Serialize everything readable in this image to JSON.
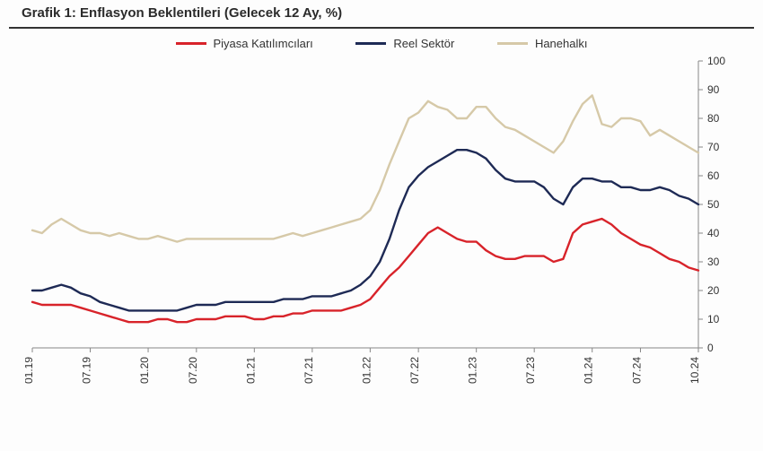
{
  "title": "Grafik 1: Enflasyon Beklentileri (Gelecek 12 Ay, %)",
  "title_fontsize": 15,
  "background_color": "#fdfdfd",
  "chart": {
    "type": "line",
    "x_labels": [
      "01.19",
      "07.19",
      "01.20",
      "07.20",
      "01.21",
      "07.21",
      "01.22",
      "07.22",
      "01.23",
      "07.23",
      "01.24",
      "07.24",
      "10.24"
    ],
    "x_label_fontsize": 12,
    "x_label_rotation": -90,
    "ylim": [
      0,
      100
    ],
    "ytick_step": 10,
    "y_label_fontsize": 12,
    "y_axis_side": "right",
    "plot_border": {
      "bottom": true,
      "right": true,
      "left": false,
      "top": false
    },
    "axis_color": "#888888",
    "line_width": 2.4,
    "legend": {
      "position": "top-center",
      "fontsize": 13,
      "items": [
        {
          "label": "Piyasa Katılımcıları",
          "color": "#d8232a"
        },
        {
          "label": "Reel Sektör",
          "color": "#1e2a55"
        },
        {
          "label": "Hanehalkı",
          "color": "#d6c9a8"
        }
      ]
    },
    "n_points": 70,
    "series": [
      {
        "name": "Hanehalkı",
        "color": "#d6c9a8",
        "values": [
          41,
          40,
          43,
          45,
          43,
          41,
          40,
          40,
          39,
          40,
          39,
          38,
          38,
          39,
          38,
          37,
          38,
          38,
          38,
          38,
          38,
          38,
          38,
          38,
          38,
          38,
          39,
          40,
          39,
          40,
          41,
          42,
          43,
          44,
          45,
          48,
          55,
          64,
          72,
          80,
          82,
          86,
          84,
          83,
          80,
          80,
          84,
          84,
          80,
          77,
          76,
          74,
          72,
          70,
          68,
          72,
          79,
          85,
          88,
          78,
          77,
          80,
          80,
          79,
          74,
          76,
          74,
          72,
          70,
          68
        ]
      },
      {
        "name": "Reel Sektör",
        "color": "#1e2a55",
        "values": [
          20,
          20,
          21,
          22,
          21,
          19,
          18,
          16,
          15,
          14,
          13,
          13,
          13,
          13,
          13,
          13,
          14,
          15,
          15,
          15,
          16,
          16,
          16,
          16,
          16,
          16,
          17,
          17,
          17,
          18,
          18,
          18,
          19,
          20,
          22,
          25,
          30,
          38,
          48,
          56,
          60,
          63,
          65,
          67,
          69,
          69,
          68,
          66,
          62,
          59,
          58,
          58,
          58,
          56,
          52,
          50,
          56,
          59,
          59,
          58,
          58,
          56,
          56,
          55,
          55,
          56,
          55,
          53,
          52,
          50
        ]
      },
      {
        "name": "Piyasa Katılımcıları",
        "color": "#d8232a",
        "values": [
          16,
          15,
          15,
          15,
          15,
          14,
          13,
          12,
          11,
          10,
          9,
          9,
          9,
          10,
          10,
          9,
          9,
          10,
          10,
          10,
          11,
          11,
          11,
          10,
          10,
          11,
          11,
          12,
          12,
          13,
          13,
          13,
          13,
          14,
          15,
          17,
          21,
          25,
          28,
          32,
          36,
          40,
          42,
          40,
          38,
          37,
          37,
          34,
          32,
          31,
          31,
          32,
          32,
          32,
          30,
          31,
          40,
          43,
          44,
          45,
          43,
          40,
          38,
          36,
          35,
          33,
          31,
          30,
          28,
          27
        ]
      }
    ]
  }
}
